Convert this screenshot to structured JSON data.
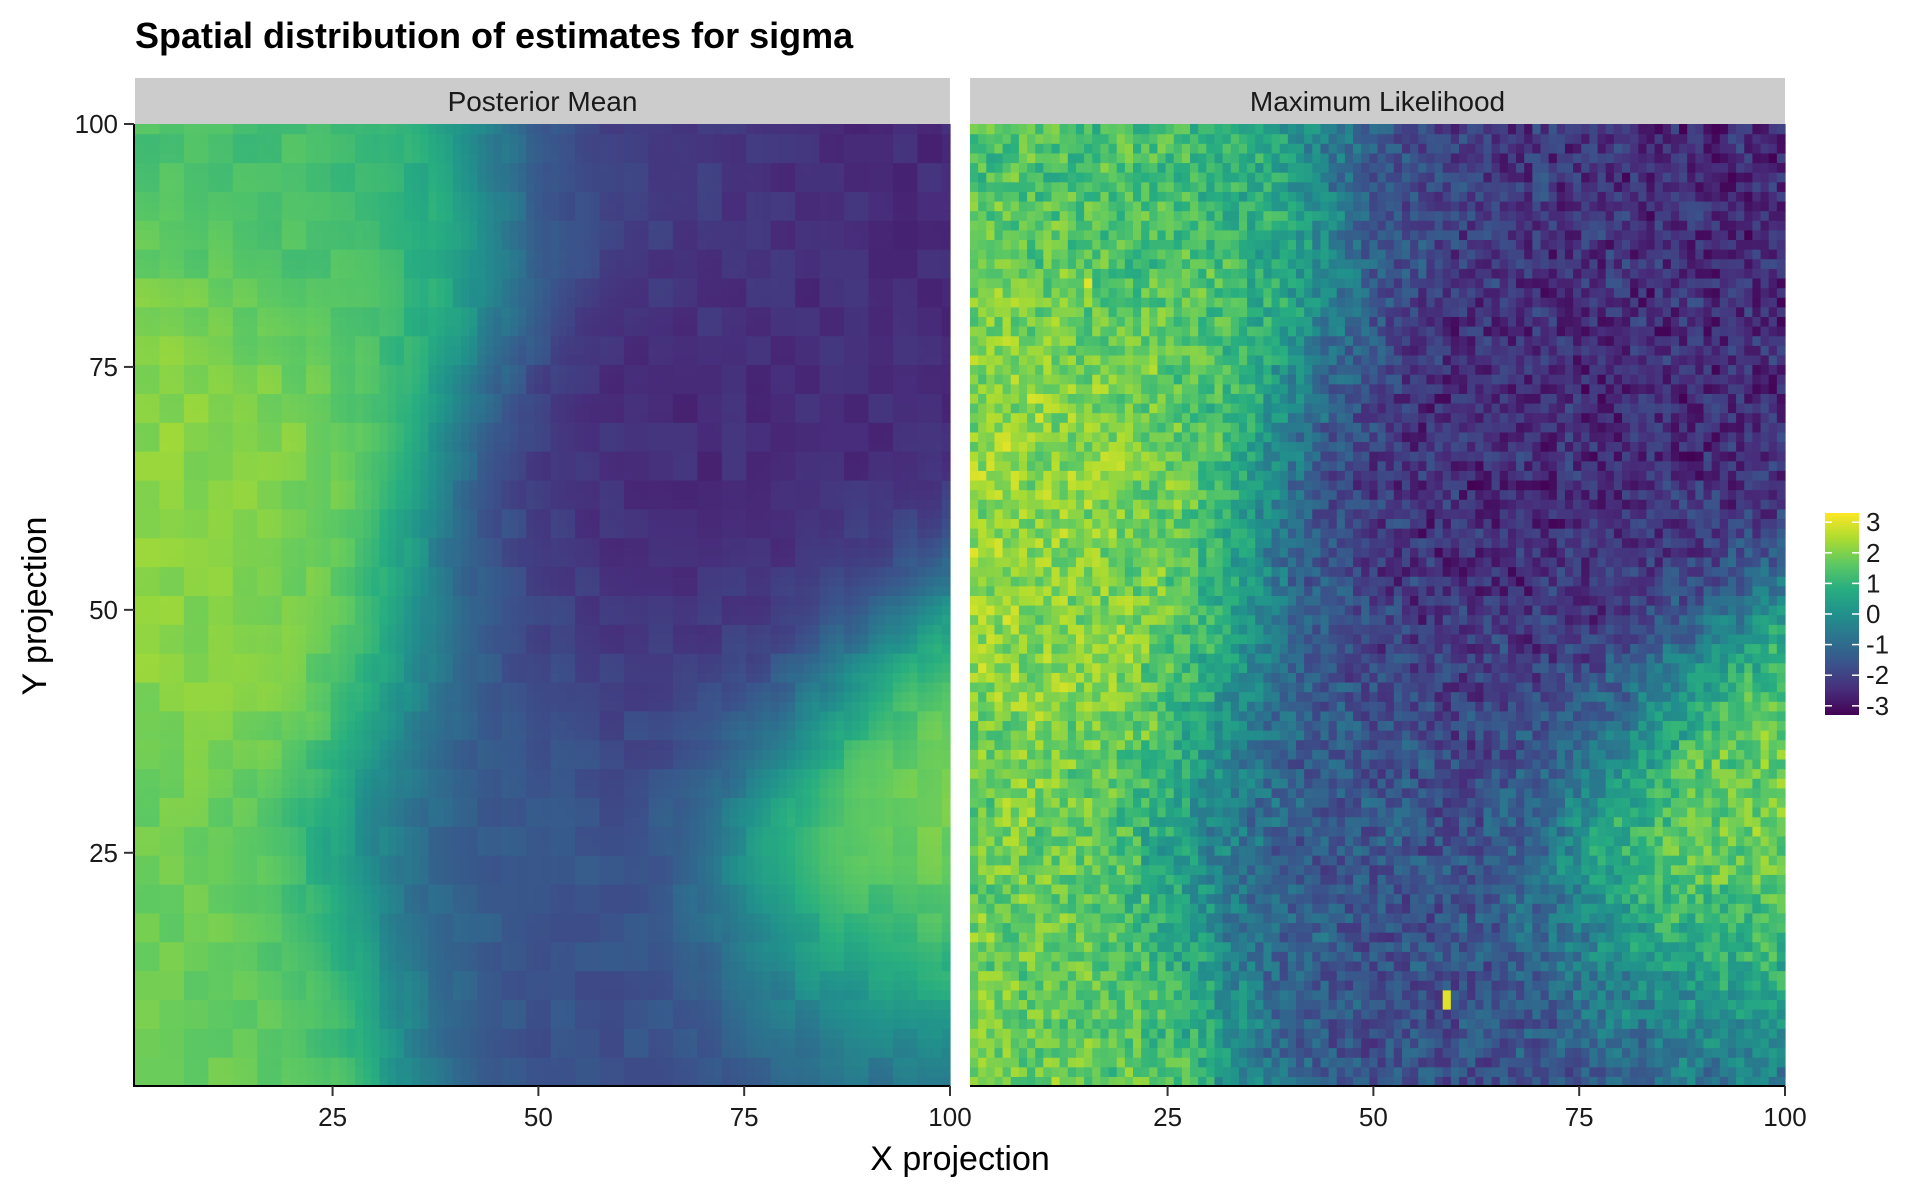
{
  "chart_data": {
    "type": "heatmap",
    "title": "Spatial distribution of estimates for sigma",
    "xlabel": "X projection",
    "ylabel": "Y projection",
    "xlim": [
      1,
      100
    ],
    "ylim": [
      1,
      100
    ],
    "x_ticks": [
      25,
      50,
      75,
      100
    ],
    "y_ticks": [
      25,
      50,
      75,
      100
    ],
    "x_tick_labels": [
      "25",
      "50",
      "75",
      "100"
    ],
    "y_tick_labels": [
      "25",
      "50",
      "75",
      "100"
    ],
    "grid": false,
    "legend_position": "right",
    "colorscale": "viridis",
    "colorbar_ticks": [
      3,
      2,
      1,
      0,
      -1,
      -2,
      -3
    ],
    "colorbar_tick_labels": [
      "3",
      "2",
      "1",
      "0",
      "-1",
      "-2",
      "-3"
    ],
    "color_range": [
      -3.3,
      3.3
    ],
    "strip_color": "#cccccc",
    "panels": [
      {
        "name": "Posterior Mean",
        "grid_resolution": 100,
        "value_summary": "smooth field; high values (yellow) at left around x 10-30, y 50-70 and lower-left x 10-25, y 5-20; high patch at lower right x 85-100, y 15-35; low values (dark purple) band through centre x 45-90, y 35-100 with minimum near x 63, y 62",
        "anchors": [
          {
            "x": 15,
            "y": 62,
            "value": 2.2
          },
          {
            "x": 20,
            "y": 52,
            "value": 2.0
          },
          {
            "x": 15,
            "y": 10,
            "value": 1.8
          },
          {
            "x": 92,
            "y": 22,
            "value": 2.4
          },
          {
            "x": 98,
            "y": 30,
            "value": 1.9
          },
          {
            "x": 30,
            "y": 88,
            "value": 1.3
          },
          {
            "x": 63,
            "y": 62,
            "value": -2.9
          },
          {
            "x": 80,
            "y": 62,
            "value": -2.5
          },
          {
            "x": 85,
            "y": 95,
            "value": -2.5
          },
          {
            "x": 60,
            "y": 95,
            "value": -2.0
          },
          {
            "x": 72,
            "y": 72,
            "value": -2.3
          },
          {
            "x": 70,
            "y": 45,
            "value": -2.0
          },
          {
            "x": 48,
            "y": 52,
            "value": -1.8
          },
          {
            "x": 60,
            "y": 10,
            "value": -1.8
          },
          {
            "x": 45,
            "y": 20,
            "value": -1.4
          },
          {
            "x": 88,
            "y": 5,
            "value": -1.6
          }
        ]
      },
      {
        "name": "Maximum Likelihood",
        "grid_resolution": 100,
        "value_summary": "noisy field with the same large-scale pattern as the posterior mean plus pixel-level noise; isolated bright pixels near x 15, y 84 and x 59, y 10",
        "anchors": [
          {
            "x": 15,
            "y": 62,
            "value": 2.2
          },
          {
            "x": 15,
            "y": 84,
            "value": 3.0
          },
          {
            "x": 59,
            "y": 10,
            "value": 3.0
          },
          {
            "x": 92,
            "y": 22,
            "value": 2.3
          },
          {
            "x": 63,
            "y": 62,
            "value": -2.8
          },
          {
            "x": 85,
            "y": 95,
            "value": -2.4
          }
        ]
      }
    ]
  }
}
